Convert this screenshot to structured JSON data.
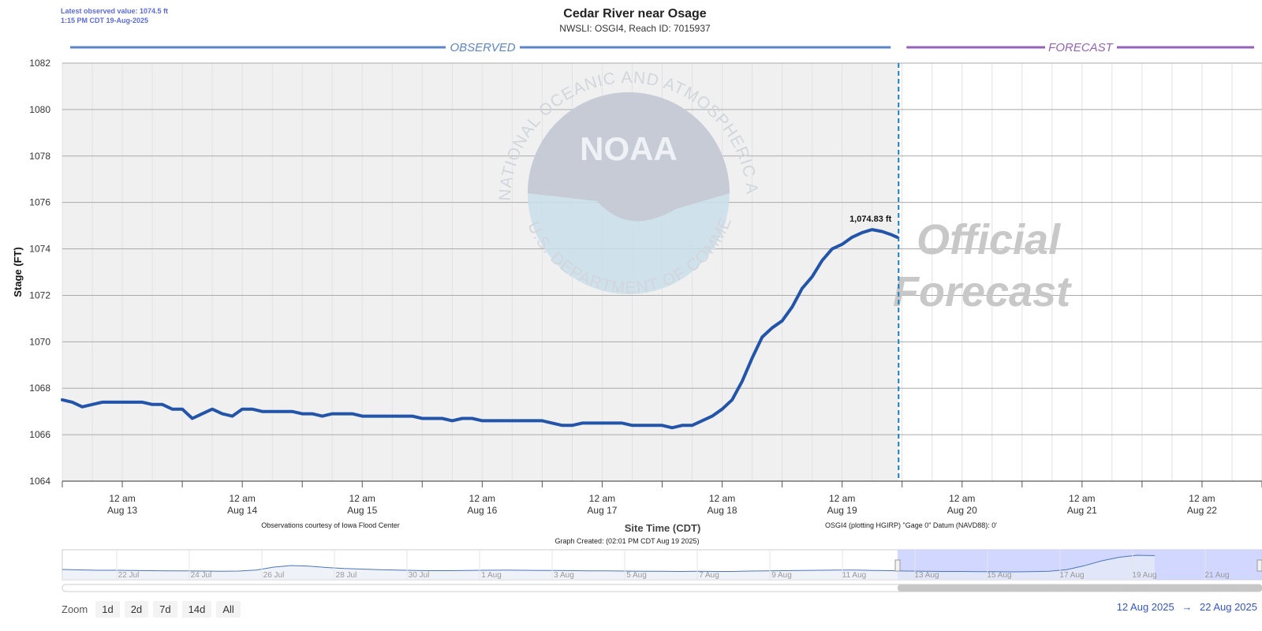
{
  "latest": {
    "line1": "Latest observed value: 1074.5 ft",
    "line2": "1:15 PM CDT 19-Aug-2025"
  },
  "zoom": {
    "label": "Zoom",
    "buttons": [
      "1d",
      "2d",
      "7d",
      "14d",
      "All"
    ]
  },
  "range": {
    "from": "12 Aug 2025",
    "arrow": "→",
    "to": "22 Aug 2025"
  },
  "colors": {
    "observed": "#2255aa",
    "observed_band": "#5b85c9",
    "forecast_band": "#9462b8",
    "plot_bg_observed": "#f0f0f0",
    "navigator_selection": "#ccd3ff",
    "divider": "#1a7fc1"
  },
  "chart_data": {
    "type": "line",
    "title": "Cedar River near Osage",
    "subtitle": "NWSLI: OSGI4, Reach ID: 7015937",
    "xlabel": "Site Time (CDT)",
    "ylabel": "Stage (FT)",
    "ylim": [
      1064,
      1082
    ],
    "yticks": [
      1064,
      1066,
      1068,
      1070,
      1072,
      1074,
      1076,
      1078,
      1080,
      1082
    ],
    "xlim_hours": [
      0,
      240
    ],
    "x_ticks": [
      {
        "hour": 12,
        "line1": "12 am",
        "line2": "Aug 13"
      },
      {
        "hour": 36,
        "line1": "12 am",
        "line2": "Aug 14"
      },
      {
        "hour": 60,
        "line1": "12 am",
        "line2": "Aug 15"
      },
      {
        "hour": 84,
        "line1": "12 am",
        "line2": "Aug 16"
      },
      {
        "hour": 108,
        "line1": "12 am",
        "line2": "Aug 17"
      },
      {
        "hour": 132,
        "line1": "12 am",
        "line2": "Aug 18"
      },
      {
        "hour": 156,
        "line1": "12 am",
        "line2": "Aug 19"
      },
      {
        "hour": 180,
        "line1": "12 am",
        "line2": "Aug 20"
      },
      {
        "hour": 204,
        "line1": "12 am",
        "line2": "Aug 21"
      },
      {
        "hour": 228,
        "line1": "12 am",
        "line2": "Aug 22"
      }
    ],
    "bands": {
      "observed": "OBSERVED",
      "forecast": "FORECAST"
    },
    "forecast_start_hour": 167.3,
    "series": [
      {
        "name": "Observed stage",
        "points": [
          [
            0,
            1067.5
          ],
          [
            2,
            1067.4
          ],
          [
            4,
            1067.2
          ],
          [
            6,
            1067.3
          ],
          [
            8,
            1067.4
          ],
          [
            10,
            1067.4
          ],
          [
            12,
            1067.4
          ],
          [
            14,
            1067.4
          ],
          [
            16,
            1067.4
          ],
          [
            18,
            1067.3
          ],
          [
            20,
            1067.3
          ],
          [
            22,
            1067.1
          ],
          [
            24,
            1067.1
          ],
          [
            26,
            1066.7
          ],
          [
            28,
            1066.9
          ],
          [
            30,
            1067.1
          ],
          [
            32,
            1066.9
          ],
          [
            34,
            1066.8
          ],
          [
            36,
            1067.1
          ],
          [
            38,
            1067.1
          ],
          [
            40,
            1067.0
          ],
          [
            42,
            1067.0
          ],
          [
            44,
            1067.0
          ],
          [
            46,
            1067.0
          ],
          [
            48,
            1066.9
          ],
          [
            50,
            1066.9
          ],
          [
            52,
            1066.8
          ],
          [
            54,
            1066.9
          ],
          [
            56,
            1066.9
          ],
          [
            58,
            1066.9
          ],
          [
            60,
            1066.8
          ],
          [
            62,
            1066.8
          ],
          [
            64,
            1066.8
          ],
          [
            66,
            1066.8
          ],
          [
            68,
            1066.8
          ],
          [
            70,
            1066.8
          ],
          [
            72,
            1066.7
          ],
          [
            74,
            1066.7
          ],
          [
            76,
            1066.7
          ],
          [
            78,
            1066.6
          ],
          [
            80,
            1066.7
          ],
          [
            82,
            1066.7
          ],
          [
            84,
            1066.6
          ],
          [
            86,
            1066.6
          ],
          [
            88,
            1066.6
          ],
          [
            90,
            1066.6
          ],
          [
            92,
            1066.6
          ],
          [
            94,
            1066.6
          ],
          [
            96,
            1066.6
          ],
          [
            98,
            1066.5
          ],
          [
            100,
            1066.4
          ],
          [
            102,
            1066.4
          ],
          [
            104,
            1066.5
          ],
          [
            106,
            1066.5
          ],
          [
            108,
            1066.5
          ],
          [
            110,
            1066.5
          ],
          [
            112,
            1066.5
          ],
          [
            114,
            1066.4
          ],
          [
            116,
            1066.4
          ],
          [
            118,
            1066.4
          ],
          [
            120,
            1066.4
          ],
          [
            122,
            1066.3
          ],
          [
            124,
            1066.4
          ],
          [
            126,
            1066.4
          ],
          [
            128,
            1066.6
          ],
          [
            130,
            1066.8
          ],
          [
            132,
            1067.1
          ],
          [
            134,
            1067.5
          ],
          [
            136,
            1068.3
          ],
          [
            138,
            1069.3
          ],
          [
            140,
            1070.2
          ],
          [
            142,
            1070.6
          ],
          [
            144,
            1070.9
          ],
          [
            146,
            1071.5
          ],
          [
            148,
            1072.3
          ],
          [
            150,
            1072.8
          ],
          [
            152,
            1073.5
          ],
          [
            154,
            1074.0
          ],
          [
            156,
            1074.2
          ],
          [
            158,
            1074.5
          ],
          [
            160,
            1074.7
          ],
          [
            162,
            1074.83
          ],
          [
            164,
            1074.75
          ],
          [
            166,
            1074.6
          ],
          [
            167,
            1074.5
          ]
        ]
      }
    ],
    "annotations": [
      {
        "hour": 162,
        "value": 1074.83,
        "text": "1,074.83 ft"
      }
    ],
    "footnote_left": "Observations courtesy of Iowa Flood Center",
    "footnote_right": "OSGI4 (plotting HGIRP) \"Gage 0\" Datum (NAVD88): 0'",
    "created": "Graph Created: (02:01 PM CDT Aug 19 2025)",
    "watermark": {
      "ring_top": "NATIONAL OCEANIC AND ATMOSPHERIC ADMINISTRATION",
      "ring_bottom": "U.S. DEPARTMENT OF COMMERCE",
      "logo": "NOAA",
      "official_line1": "Official",
      "official_line2": "Forecast"
    },
    "navigator": {
      "labels": [
        "22 Jul",
        "24 Jul",
        "26 Jul",
        "28 Jul",
        "30 Jul",
        "1 Aug",
        "3 Aug",
        "5 Aug",
        "7 Aug",
        "9 Aug",
        "11 Aug",
        "13 Aug",
        "15 Aug",
        "17 Aug",
        "19 Aug",
        "21 Aug"
      ],
      "values": [
        1067.6,
        1067.4,
        1067.2,
        1067.2,
        1067.1,
        1067.0,
        1066.9,
        1066.9,
        1066.8,
        1066.7,
        1066.8,
        1067.3,
        1068.8,
        1069.6,
        1069.3,
        1068.6,
        1068.1,
        1067.8,
        1067.5,
        1067.3,
        1067.1,
        1067.0,
        1067.0,
        1067.1,
        1067.2,
        1067.3,
        1067.2,
        1067.1,
        1067.1,
        1067.0,
        1066.9,
        1066.9,
        1066.8,
        1066.7,
        1066.7,
        1066.6,
        1066.7,
        1066.6,
        1066.6,
        1066.8,
        1066.9,
        1067.0,
        1067.1,
        1067.2,
        1067.3,
        1067.3,
        1067.1,
        1067.0,
        1066.8,
        1066.7,
        1066.6,
        1066.6,
        1066.5,
        1066.5,
        1066.4,
        1066.5,
        1066.7,
        1067.5,
        1069.5,
        1072.0,
        1073.8,
        1074.8,
        1074.6
      ]
    }
  }
}
